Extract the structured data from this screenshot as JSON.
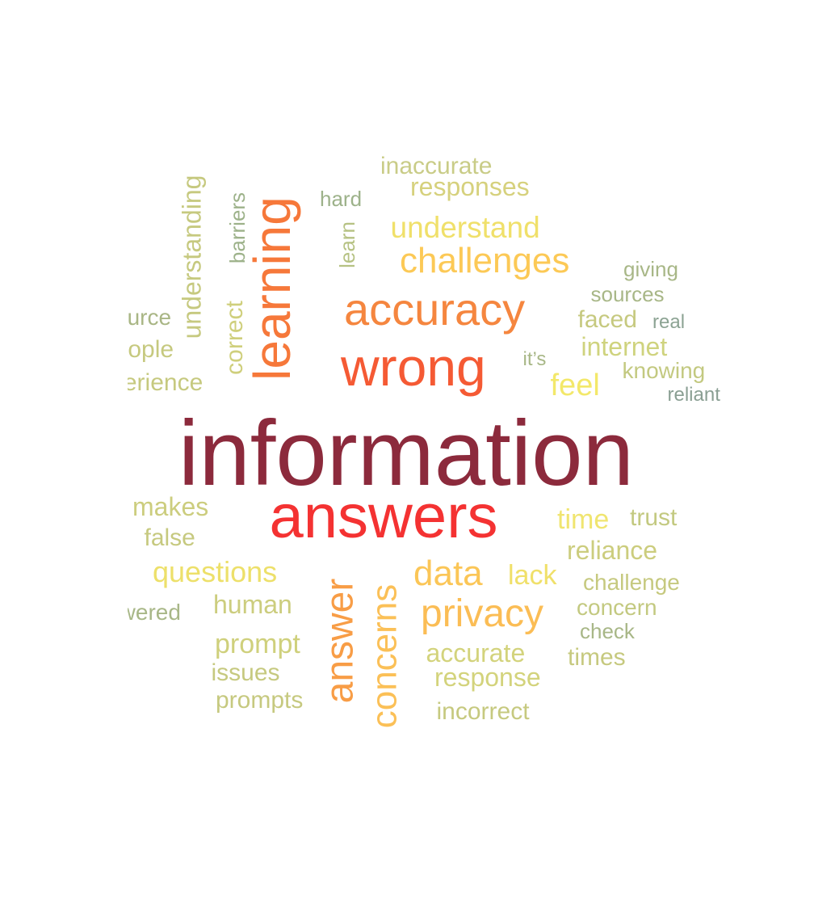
{
  "words": [
    {
      "text": "information",
      "color": "#8c2a3c"
    },
    {
      "text": "answers",
      "color": "#f43232"
    },
    {
      "text": "wrong",
      "color": "#f55a34"
    },
    {
      "text": "accuracy",
      "color": "#f5863f"
    },
    {
      "text": "learning",
      "color": "#f6783a"
    },
    {
      "text": "challenges",
      "color": "#fcc956"
    },
    {
      "text": "understand",
      "color": "#f0e06a"
    },
    {
      "text": "privacy",
      "color": "#fbbd55"
    },
    {
      "text": "data",
      "color": "#fbc657"
    },
    {
      "text": "answer",
      "color": "#f89d46"
    },
    {
      "text": "concerns",
      "color": "#fbc057"
    },
    {
      "text": "inaccurate",
      "color": "#c9cc87"
    },
    {
      "text": "responses",
      "color": "#d6d17d"
    },
    {
      "text": "hard",
      "color": "#9db28a"
    },
    {
      "text": "learn",
      "color": "#b6c283"
    },
    {
      "text": "barriers",
      "color": "#9db28a"
    },
    {
      "text": "understanding",
      "color": "#c6c97f"
    },
    {
      "text": "correct",
      "color": "#cfcf7c"
    },
    {
      "text": "source",
      "color": "#a9b685"
    },
    {
      "text": "people",
      "color": "#c6c97f"
    },
    {
      "text": "experience",
      "color": "#c6c97f"
    },
    {
      "text": "giving",
      "color": "#a8b787"
    },
    {
      "text": "sources",
      "color": "#a8b787"
    },
    {
      "text": "faced",
      "color": "#c6c97f"
    },
    {
      "text": "real",
      "color": "#8ca393"
    },
    {
      "text": "internet",
      "color": "#cfd37e"
    },
    {
      "text": "it’s",
      "color": "#a8b787"
    },
    {
      "text": "feel",
      "color": "#f3e86a"
    },
    {
      "text": "knowing",
      "color": "#c3c980"
    },
    {
      "text": "reliant",
      "color": "#8a9f93"
    },
    {
      "text": "makes",
      "color": "#cccd7e"
    },
    {
      "text": "false",
      "color": "#c6c97f"
    },
    {
      "text": "questions",
      "color": "#ede06a"
    },
    {
      "text": "answered",
      "color": "#a8b787"
    },
    {
      "text": "human",
      "color": "#cccd7e"
    },
    {
      "text": "prompt",
      "color": "#cfd07c"
    },
    {
      "text": "issues",
      "color": "#c6c97f"
    },
    {
      "text": "prompts",
      "color": "#c6c97f"
    },
    {
      "text": "time",
      "color": "#f0e570"
    },
    {
      "text": "trust",
      "color": "#c3c980"
    },
    {
      "text": "reliance",
      "color": "#cccd7e"
    },
    {
      "text": "lack",
      "color": "#f0e06a"
    },
    {
      "text": "challenge",
      "color": "#c6c97f"
    },
    {
      "text": "concern",
      "color": "#c3c980"
    },
    {
      "text": "check",
      "color": "#a8b787"
    },
    {
      "text": "times",
      "color": "#c6c97f"
    },
    {
      "text": "accurate",
      "color": "#d3d37c"
    },
    {
      "text": "response",
      "color": "#d3d37c"
    },
    {
      "text": "incorrect",
      "color": "#c6c97f"
    }
  ]
}
